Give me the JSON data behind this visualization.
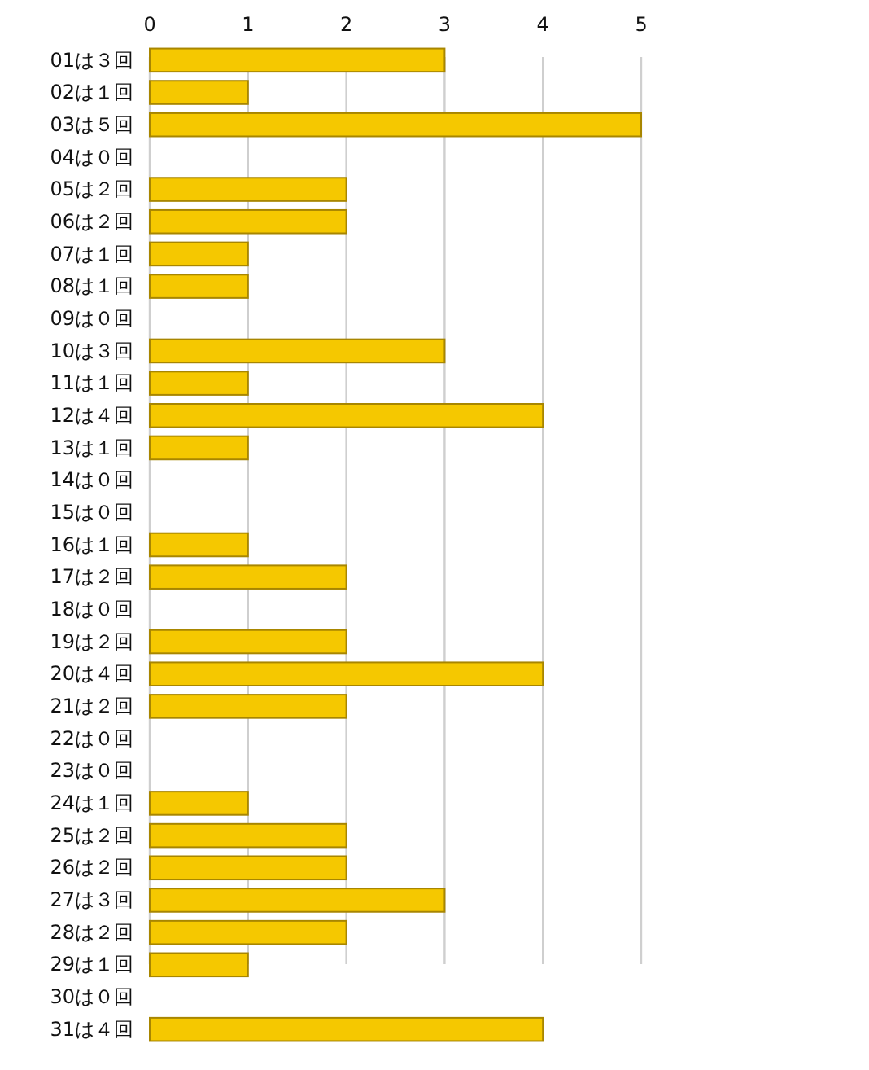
{
  "chart_data": {
    "type": "bar",
    "orientation": "horizontal",
    "categories": [
      "01は３回",
      "02は１回",
      "03は５回",
      "04は０回",
      "05は２回",
      "06は２回",
      "07は１回",
      "08は１回",
      "09は０回",
      "10は３回",
      "11は１回",
      "12は４回",
      "13は１回",
      "14は０回",
      "15は０回",
      "16は１回",
      "17は２回",
      "18は０回",
      "19は２回",
      "20は４回",
      "21は２回",
      "22は０回",
      "23は０回",
      "24は１回",
      "25は２回",
      "26は２回",
      "27は３回",
      "28は２回",
      "29は１回",
      "30は０回",
      "31は４回"
    ],
    "values": [
      3,
      1,
      5,
      0,
      2,
      2,
      1,
      1,
      0,
      3,
      1,
      4,
      1,
      0,
      0,
      1,
      2,
      0,
      2,
      4,
      2,
      0,
      0,
      1,
      2,
      2,
      3,
      2,
      1,
      0,
      4
    ],
    "color": "#f5c800",
    "xlim": [
      0,
      5
    ],
    "xticks": [
      0,
      1,
      2,
      3,
      4,
      5
    ],
    "grid": "x"
  }
}
